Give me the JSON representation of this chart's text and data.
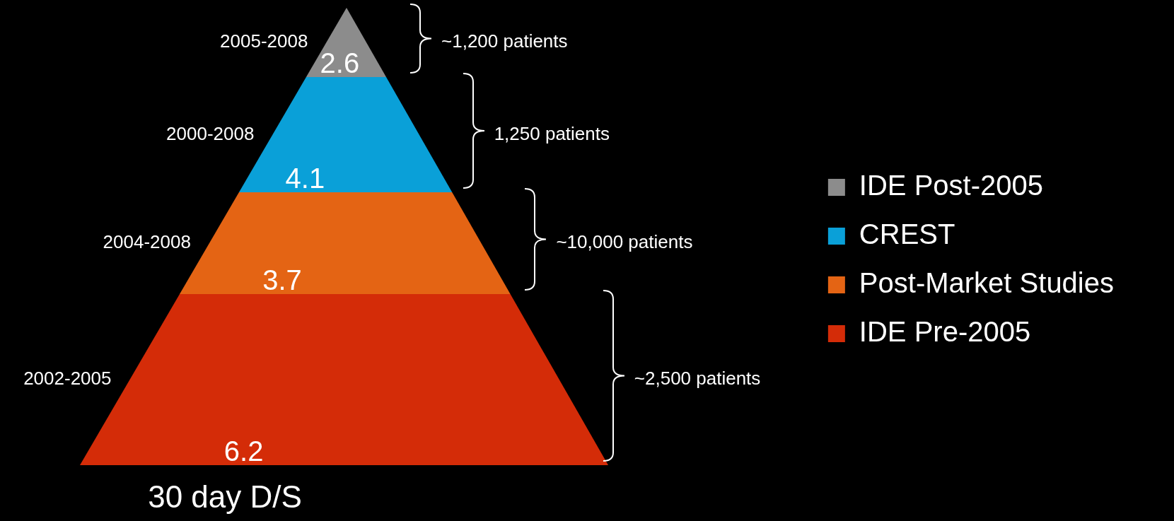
{
  "chart_data": {
    "type": "other",
    "xlabel": "30 day D/S",
    "data_labels": true,
    "categories": [
      "IDE Post-2005",
      "CREST",
      "Post-Market Studies",
      "IDE Pre-2005"
    ],
    "values": [
      2.6,
      4.1,
      3.7,
      6.2
    ],
    "colors": [
      "#8c8c8c",
      "#0aa0d8",
      "#e46414",
      "#d42c08"
    ],
    "annotations": [
      "2005-2008",
      "2000-2008",
      "2004-2008",
      "2002-2005",
      "~1,200 patients",
      "1,250 patients",
      "~10,000 patients",
      "~2,500 patients"
    ]
  }
}
